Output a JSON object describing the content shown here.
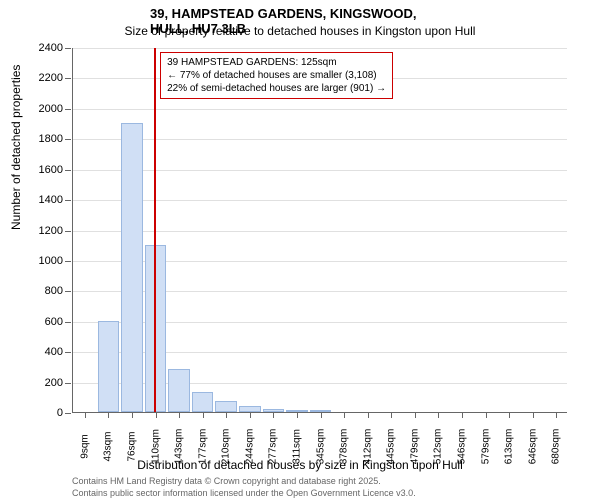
{
  "title_main": "39, HAMPSTEAD GARDENS, KINGSWOOD, HULL, HU7 3LB",
  "title_sub": "Size of property relative to detached houses in Kingston upon Hull",
  "y_axis_title": "Number of detached properties",
  "x_axis_title": "Distribution of detached houses by size in Kingston upon Hull",
  "footer_1": "Contains HM Land Registry data © Crown copyright and database right 2025.",
  "footer_2": "Contains public sector information licensed under the Open Government Licence v3.0.",
  "chart": {
    "type": "histogram",
    "ylim": [
      0,
      2400
    ],
    "ytick_step": 200,
    "background_color": "#ffffff",
    "grid_color": "#e0e0e0",
    "bar_fill": "#d0dff5",
    "bar_border": "#9bb8e0",
    "marker_color": "#cc0000",
    "annotation_border": "#cc0000",
    "categories": [
      "9sqm",
      "43sqm",
      "76sqm",
      "110sqm",
      "143sqm",
      "177sqm",
      "210sqm",
      "244sqm",
      "277sqm",
      "311sqm",
      "345sqm",
      "378sqm",
      "412sqm",
      "445sqm",
      "479sqm",
      "512sqm",
      "546sqm",
      "579sqm",
      "613sqm",
      "646sqm",
      "680sqm"
    ],
    "values": [
      0,
      600,
      1900,
      1100,
      280,
      130,
      70,
      40,
      20,
      10,
      5,
      0,
      0,
      0,
      0,
      0,
      0,
      0,
      0,
      0,
      0
    ],
    "marker_x_index": 3.44,
    "annotation": {
      "line1": "39 HAMPSTEAD GARDENS: 125sqm",
      "line2": "← 77% of detached houses are smaller (3,108)",
      "line3": "22% of semi-detached houses are larger (901) →"
    }
  }
}
